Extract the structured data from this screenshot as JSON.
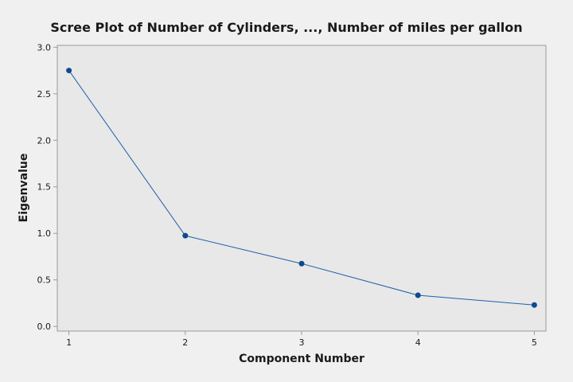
{
  "chart_data": {
    "type": "line",
    "title": "Scree Plot of Number of Cylinders, ..., Number of miles per gallon",
    "xlabel": "Component Number",
    "ylabel": "Eigenvalue",
    "x": [
      1,
      2,
      3,
      4,
      5
    ],
    "values": [
      2.75,
      0.975,
      0.675,
      0.335,
      0.23
    ],
    "x_ticks": [
      "1",
      "2",
      "3",
      "4",
      "5"
    ],
    "y_ticks": [
      "0.0",
      "0.5",
      "1.0",
      "1.5",
      "2.0",
      "2.5",
      "3.0"
    ],
    "xlim": [
      0.9,
      5.1
    ],
    "ylim": [
      -0.05,
      3.02
    ],
    "grid": false,
    "legend": "none",
    "colors": {
      "page_background": "#f0f0f0",
      "plot_background": "#e8e8e8",
      "line": "#1f5fa8",
      "marker": "#0e4a8c",
      "axis": "#9a9a9a"
    }
  }
}
